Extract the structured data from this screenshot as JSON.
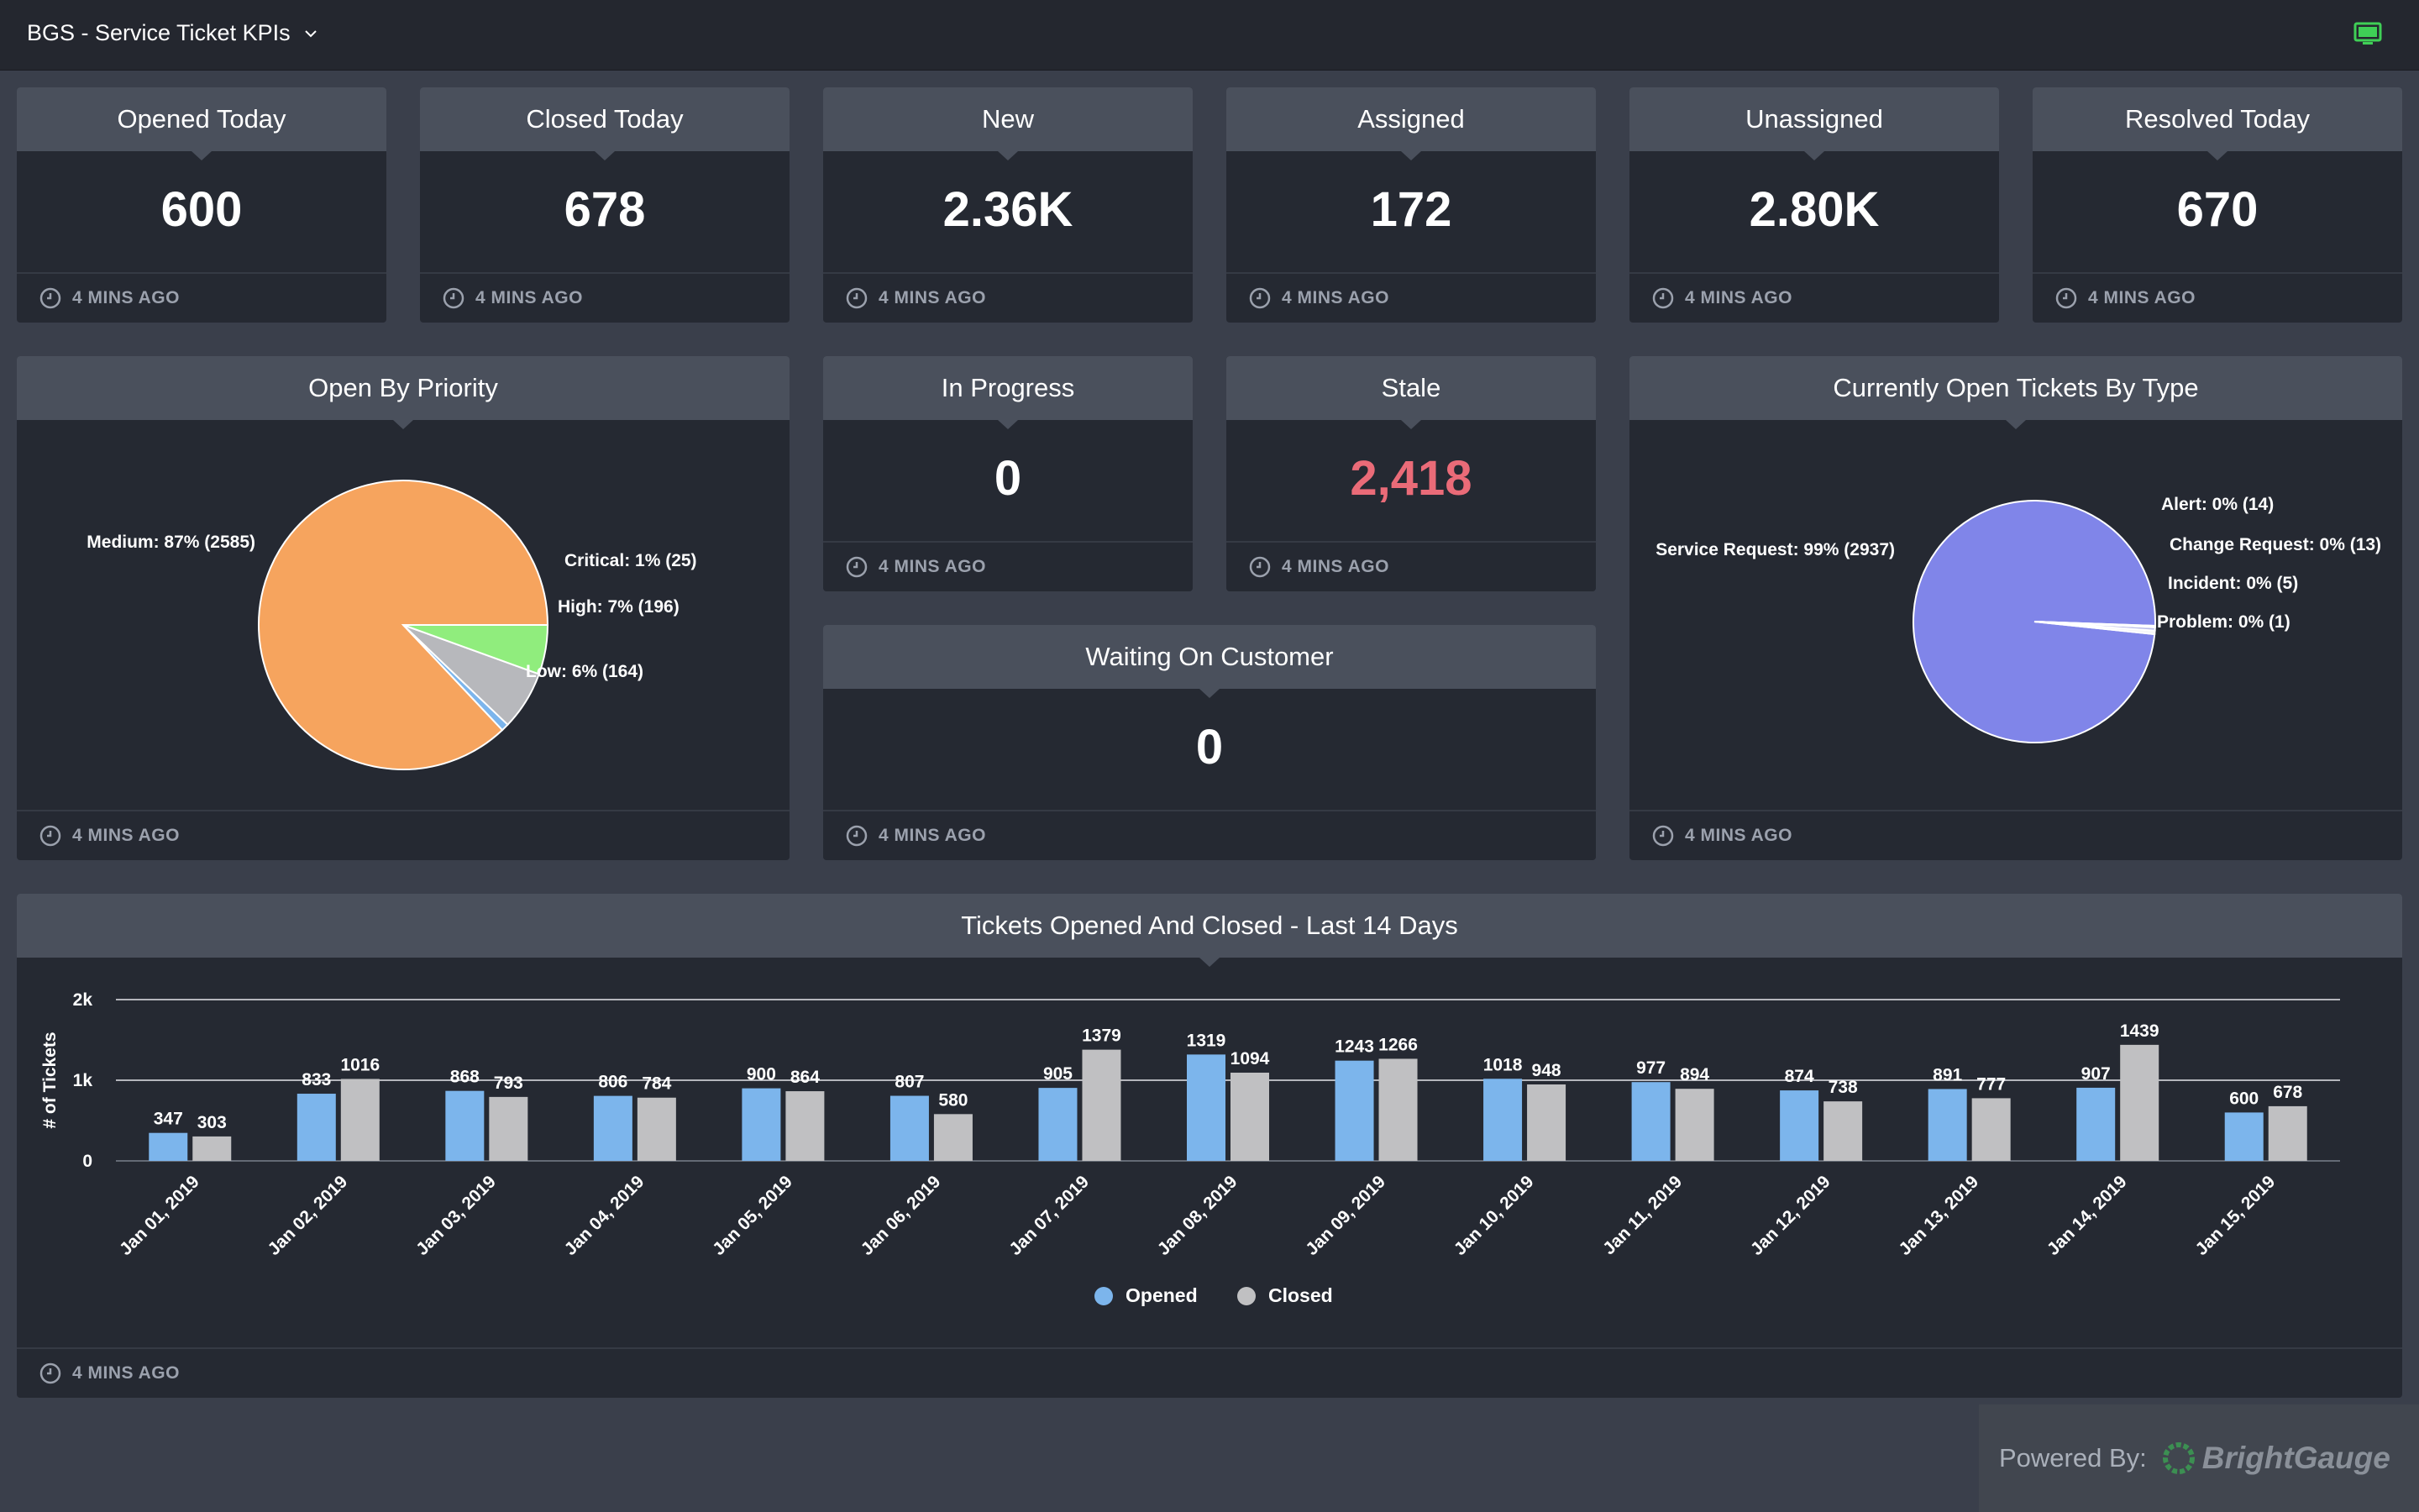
{
  "topbar": {
    "title": "BGS - Service Ticket KPIs",
    "monitor_icon": "monitor-icon"
  },
  "footer_time": "4 MINS AGO",
  "kpis": [
    {
      "title": "Opened Today",
      "value": "600"
    },
    {
      "title": "Closed Today",
      "value": "678"
    },
    {
      "title": "New",
      "value": "2.36K"
    },
    {
      "title": "Assigned",
      "value": "172"
    },
    {
      "title": "Unassigned",
      "value": "2.80K"
    },
    {
      "title": "Resolved Today",
      "value": "670"
    }
  ],
  "priority": {
    "title": "Open By Priority",
    "chart_data": {
      "type": "pie",
      "slices": [
        {
          "label": "Medium: 87% (2585)",
          "value": 2585,
          "color": "#f6a45e"
        },
        {
          "label": "Critical: 1% (25)",
          "value": 25,
          "color": "#7cb5ec"
        },
        {
          "label": "High: 7% (196)",
          "value": 196,
          "color": "#b7b8bc"
        },
        {
          "label": "Low: 6% (164)",
          "value": 164,
          "color": "#90ed7d"
        }
      ]
    }
  },
  "in_progress": {
    "title": "In Progress",
    "value": "0"
  },
  "stale": {
    "title": "Stale",
    "value": "2,418",
    "color": "#ea6b78"
  },
  "waiting": {
    "title": "Waiting On Customer",
    "value": "0"
  },
  "by_type": {
    "title": "Currently Open Tickets By Type",
    "chart_data": {
      "type": "pie",
      "slices": [
        {
          "label": "Service Request: 99% (2937)",
          "value": 2937,
          "color": "#8085e9"
        },
        {
          "label": "Alert: 0% (14)",
          "value": 14,
          "color": "#f7f7f7"
        },
        {
          "label": "Change Request: 0% (13)",
          "value": 13,
          "color": "#b8bbe8"
        },
        {
          "label": "Incident: 0% (5)",
          "value": 5,
          "color": "#ffffff"
        },
        {
          "label": "Problem: 0% (1)",
          "value": 1,
          "color": "#d4d6f0"
        }
      ]
    }
  },
  "trend": {
    "title": "Tickets Opened And Closed - Last 14 Days",
    "chart_data": {
      "type": "bar",
      "ylabel": "# of Tickets",
      "ylim": [
        0,
        2000
      ],
      "yticks": [
        "0",
        "1k",
        "2k"
      ],
      "categories": [
        "Jan 01, 2019",
        "Jan 02, 2019",
        "Jan 03, 2019",
        "Jan 04, 2019",
        "Jan 05, 2019",
        "Jan 06, 2019",
        "Jan 07, 2019",
        "Jan 08, 2019",
        "Jan 09, 2019",
        "Jan 10, 2019",
        "Jan 11, 2019",
        "Jan 12, 2019",
        "Jan 13, 2019",
        "Jan 14, 2019",
        "Jan 15, 2019"
      ],
      "series": [
        {
          "name": "Opened",
          "color": "#7cb5ec",
          "values": [
            347,
            833,
            868,
            806,
            900,
            807,
            905,
            1319,
            1243,
            1018,
            977,
            874,
            891,
            907,
            600
          ]
        },
        {
          "name": "Closed",
          "color": "#c0c0c2",
          "values": [
            303,
            1016,
            793,
            784,
            864,
            580,
            1379,
            1094,
            1266,
            948,
            894,
            738,
            777,
            1439,
            678
          ]
        }
      ],
      "legend_position": "bottom-center"
    }
  },
  "powered": {
    "label": "Powered By:",
    "brand": "BrightGauge"
  }
}
